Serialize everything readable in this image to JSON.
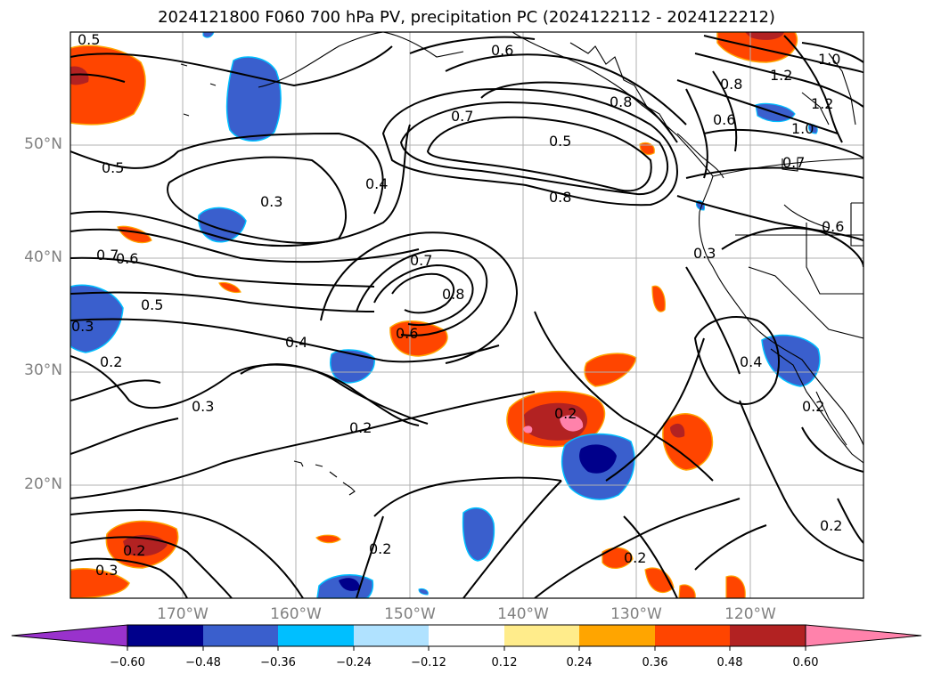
{
  "title": "2024121800 F060 700 hPa PV, precipitation PC (2024122112 - 2024122212)",
  "map": {
    "extent": {
      "lon_min": -180,
      "lon_max": -110,
      "lat_min": 10,
      "lat_max": 60
    },
    "lat_labels": [
      "50°N",
      "40°N",
      "30°N",
      "20°N"
    ],
    "lon_labels": [
      "170°W",
      "160°W",
      "150°W",
      "140°W",
      "130°W",
      "120°W"
    ],
    "contour_labels": [
      "0.5",
      "0.6",
      "0.7",
      "0.5",
      "0.8",
      "0.8",
      "1.2",
      "1.0",
      "0.8",
      "0.6",
      "1.2",
      "1.0",
      "0.7",
      "0.5",
      "0.3",
      "0.4",
      "0.6",
      "0.7",
      "0.6",
      "0.3",
      "0.7",
      "0.8",
      "0.5",
      "0.6",
      "0.4",
      "0.3",
      "0.2",
      "0.4",
      "0.2",
      "0.2",
      "0.3",
      "0.2",
      "0.2",
      "0.2",
      "0.3",
      "0.2",
      "0.2"
    ],
    "grid": true,
    "coastlines": true
  },
  "colorbar": {
    "ticks": [
      "−0.60",
      "−0.48",
      "−0.36",
      "−0.24",
      "−0.12",
      "0.12",
      "0.24",
      "0.36",
      "0.48",
      "0.60"
    ],
    "colors": [
      "#9932CC",
      "#00008B",
      "#3A5FCD",
      "#00BFFF",
      "#B0E2FF",
      "#FFFFFF",
      "#FFEC8B",
      "#FFA500",
      "#FF4500",
      "#B22222",
      "#FF82AB"
    ],
    "extend": "both"
  }
}
